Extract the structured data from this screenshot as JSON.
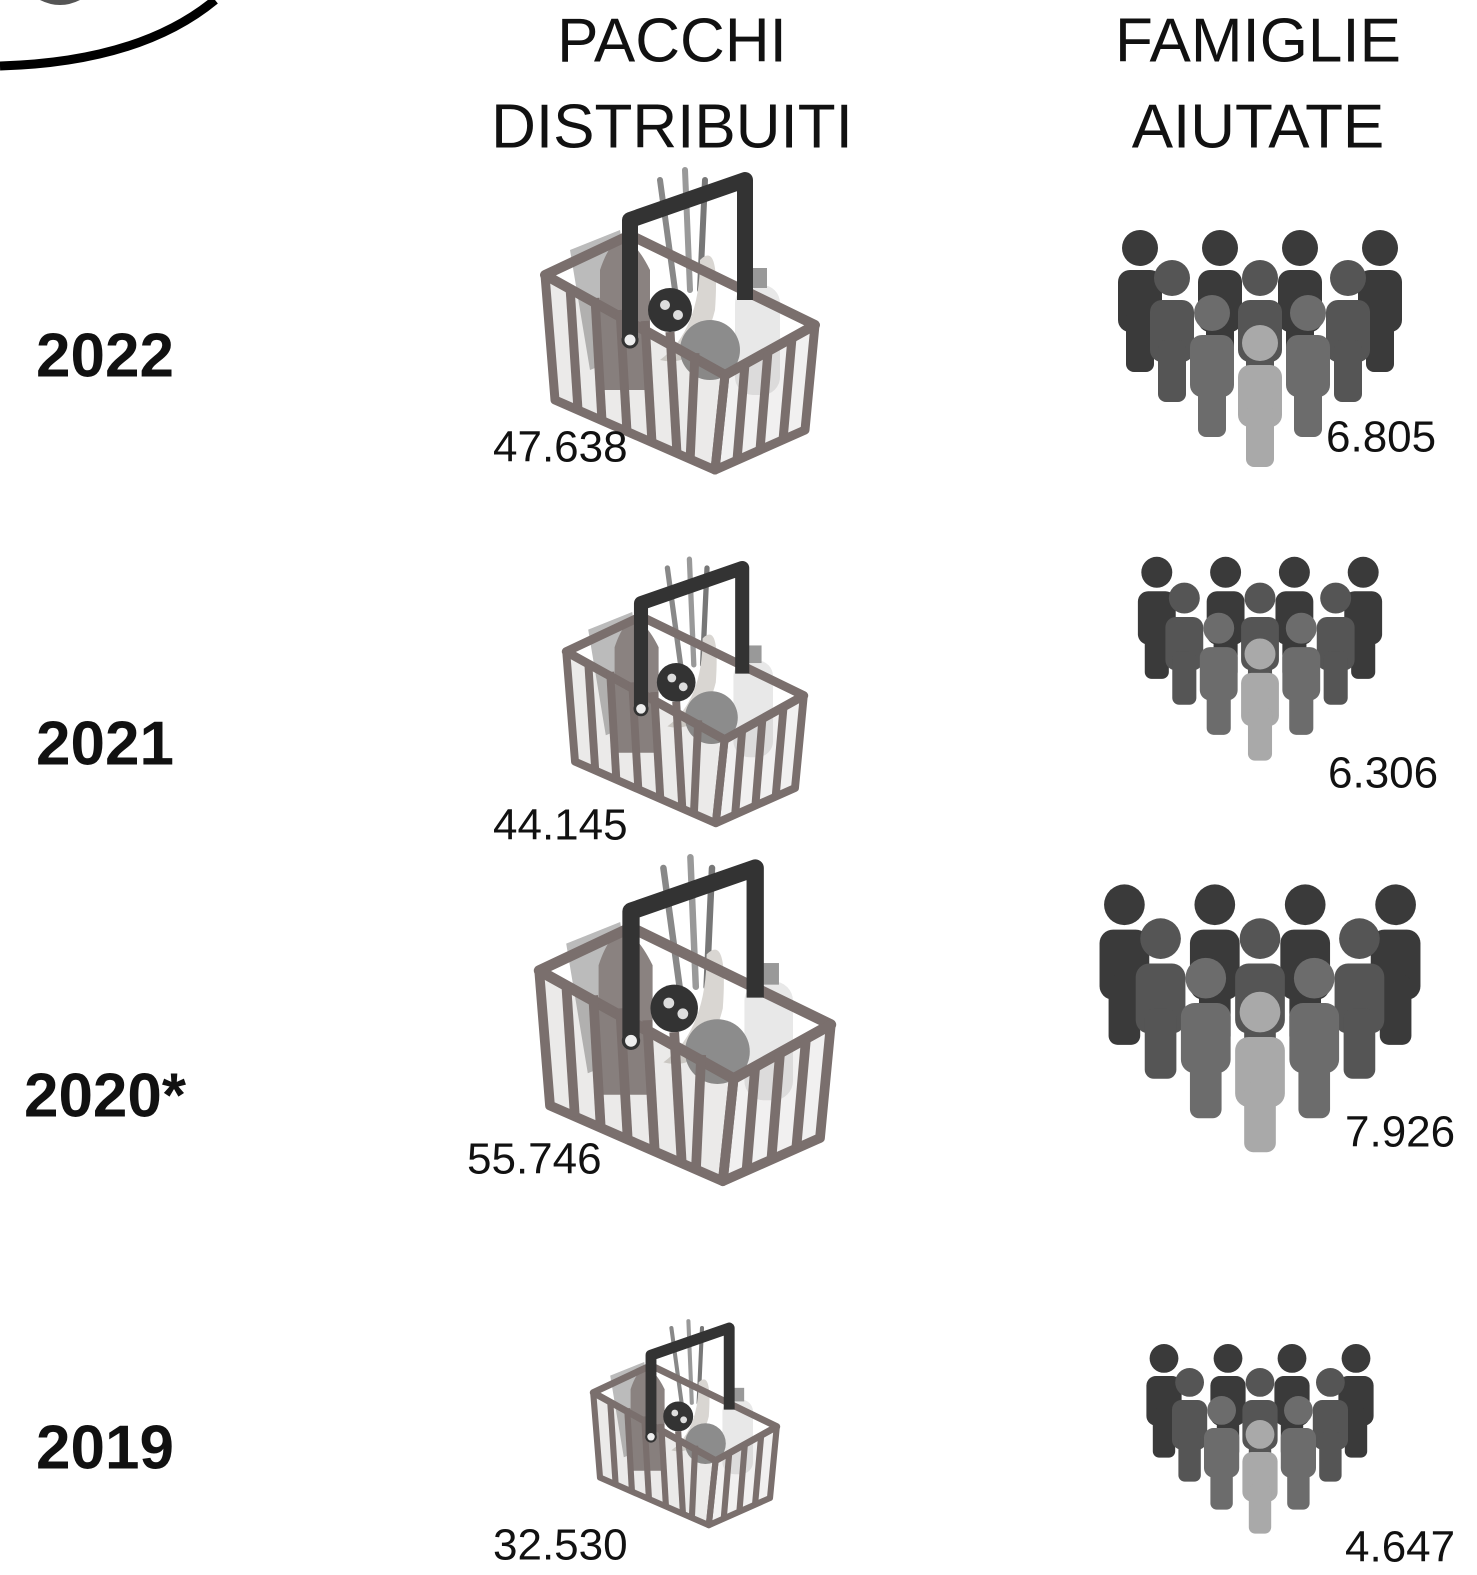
{
  "header": {
    "columns": [
      {
        "lines": [
          "PACCHI",
          "DISTRIBUITI"
        ]
      },
      {
        "lines": [
          "FAMIGLIE",
          "AIUTATE"
        ]
      }
    ]
  },
  "rows": [
    {
      "year": "2022",
      "packages": "47.638",
      "families": "6.805"
    },
    {
      "year": "2021",
      "packages": "44.145",
      "families": "6.306"
    },
    {
      "year": "2020*",
      "packages": "55.746",
      "families": "7.926"
    },
    {
      "year": "2019",
      "packages": "32.530",
      "families": "4.647"
    }
  ]
}
